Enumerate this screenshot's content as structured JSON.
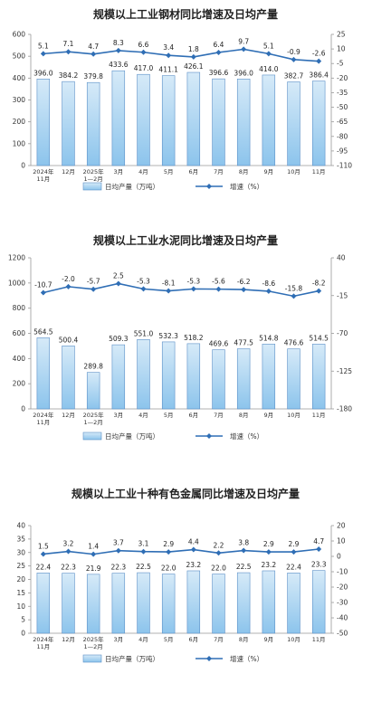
{
  "colors": {
    "bar_fill_top": "#d6eaf8",
    "bar_fill_bottom": "#8cc4ec",
    "bar_stroke": "#5b8fc7",
    "line": "#2f6eb5",
    "axis": "#999999"
  },
  "chart_data": [
    {
      "type": "bar",
      "title": "规模以上工业钢材同比增速及日均产量",
      "categories": [
        [
          "2024年",
          "11月"
        ],
        [
          "12月"
        ],
        [
          "2025年",
          "1—2月"
        ],
        [
          "3月"
        ],
        [
          "4月"
        ],
        [
          "5月"
        ],
        [
          "6月"
        ],
        [
          "7月"
        ],
        [
          "8月"
        ],
        [
          "9月"
        ],
        [
          "10月"
        ],
        [
          "11月"
        ]
      ],
      "series": [
        {
          "name": "日均产量（万吨）",
          "kind": "bar",
          "axis": "left",
          "values": [
            396.0,
            384.2,
            379.8,
            433.6,
            417.0,
            411.1,
            426.1,
            396.6,
            396.0,
            414.0,
            382.7,
            386.4
          ],
          "labels": [
            "396.0",
            "384.2",
            "379.8",
            "433.6",
            "417.0",
            "411.1",
            "426.1",
            "396.6",
            "396.0",
            "414.0",
            "382.7",
            "386.4"
          ]
        },
        {
          "name": "增速（%）",
          "kind": "line",
          "axis": "right",
          "values": [
            5.1,
            7.1,
            4.7,
            8.3,
            6.6,
            3.4,
            1.8,
            6.4,
            9.7,
            5.1,
            -0.9,
            -2.6
          ],
          "labels": [
            "5.1",
            "7.1",
            "4.7",
            "8.3",
            "6.6",
            "3.4",
            "1.8",
            "6.4",
            "9.7",
            "5.1",
            "-0.9",
            "-2.6"
          ]
        }
      ],
      "y_left": {
        "min": 0,
        "max": 600,
        "ticks": [
          "0",
          "100",
          "200",
          "300",
          "400",
          "500",
          "600"
        ]
      },
      "y_right": {
        "min": -110,
        "max": 25,
        "ticks": [
          "25",
          "10",
          "-5",
          "-20",
          "-35",
          "-50",
          "-65",
          "-80",
          "-95",
          "-110"
        ]
      },
      "legend": [
        "日均产量（万吨）",
        "增速（%）"
      ],
      "legend_position": "bottom"
    },
    {
      "type": "bar",
      "title": "规模以上工业水泥同比增速及日均产量",
      "categories": [
        [
          "2024年",
          "11月"
        ],
        [
          "12月"
        ],
        [
          "2025年",
          "1—2月"
        ],
        [
          "3月"
        ],
        [
          "4月"
        ],
        [
          "5月"
        ],
        [
          "6月"
        ],
        [
          "7月"
        ],
        [
          "8月"
        ],
        [
          "9月"
        ],
        [
          "10月"
        ],
        [
          "11月"
        ]
      ],
      "series": [
        {
          "name": "日均产量（万吨）",
          "kind": "bar",
          "axis": "left",
          "values": [
            564.5,
            500.4,
            289.8,
            509.3,
            551.0,
            532.3,
            518.2,
            469.6,
            477.5,
            514.8,
            476.6,
            514.5
          ],
          "labels": [
            "564.5",
            "500.4",
            "289.8",
            "509.3",
            "551.0",
            "532.3",
            "518.2",
            "469.6",
            "477.5",
            "514.8",
            "476.6",
            "514.5"
          ]
        },
        {
          "name": "增速（%）",
          "kind": "line",
          "axis": "right",
          "values": [
            -10.7,
            -2.0,
            -5.7,
            2.5,
            -5.3,
            -8.1,
            -5.3,
            -5.6,
            -6.2,
            -8.6,
            -15.8,
            -8.2
          ],
          "labels": [
            "-10.7",
            "-2.0",
            "-5.7",
            "2.5",
            "-5.3",
            "-8.1",
            "-5.3",
            "-5.6",
            "-6.2",
            "-8.6",
            "-15.8",
            "-8.2"
          ]
        }
      ],
      "y_left": {
        "min": 0,
        "max": 1200,
        "ticks": [
          "0",
          "200",
          "400",
          "600",
          "800",
          "1000",
          "1200"
        ]
      },
      "y_right": {
        "min": -180,
        "max": 40,
        "ticks": [
          "40",
          "-15",
          "-70",
          "-125",
          "-180"
        ]
      },
      "legend": [
        "日均产量（万吨）",
        "增速（%）"
      ],
      "legend_position": "bottom"
    },
    {
      "type": "bar",
      "title": "规模以上工业十种有色金属同比增速及日均产量",
      "categories": [
        [
          "2024年",
          "11月"
        ],
        [
          "12月"
        ],
        [
          "2025年",
          "1—2月"
        ],
        [
          "3月"
        ],
        [
          "4月"
        ],
        [
          "5月"
        ],
        [
          "6月"
        ],
        [
          "7月"
        ],
        [
          "8月"
        ],
        [
          "9月"
        ],
        [
          "10月"
        ],
        [
          "11月"
        ]
      ],
      "series": [
        {
          "name": "日均产量（万吨）",
          "kind": "bar",
          "axis": "left",
          "values": [
            22.4,
            22.3,
            21.9,
            22.3,
            22.5,
            22.0,
            23.2,
            22.0,
            22.5,
            23.2,
            22.4,
            23.3
          ],
          "labels": [
            "22.4",
            "22.3",
            "21.9",
            "22.3",
            "22.5",
            "22.0",
            "23.2",
            "22.0",
            "22.5",
            "23.2",
            "22.4",
            "23.3"
          ]
        },
        {
          "name": "增速（%）",
          "kind": "line",
          "axis": "right",
          "values": [
            1.5,
            3.2,
            1.4,
            3.7,
            3.1,
            2.9,
            4.4,
            2.2,
            3.8,
            2.9,
            2.9,
            4.7
          ],
          "labels": [
            "1.5",
            "3.2",
            "1.4",
            "3.7",
            "3.1",
            "2.9",
            "4.4",
            "2.2",
            "3.8",
            "2.9",
            "2.9",
            "4.7"
          ]
        }
      ],
      "y_left": {
        "min": 0,
        "max": 40,
        "ticks": [
          "0",
          "5",
          "10",
          "15",
          "20",
          "25",
          "30",
          "35",
          "40"
        ]
      },
      "y_right": {
        "min": -50,
        "max": 20,
        "ticks": [
          "20",
          "10",
          "0",
          "-10",
          "-20",
          "-30",
          "-40",
          "-50"
        ]
      },
      "legend": [
        "日均产量（万吨）",
        "增速（%）"
      ],
      "legend_position": "bottom"
    }
  ]
}
